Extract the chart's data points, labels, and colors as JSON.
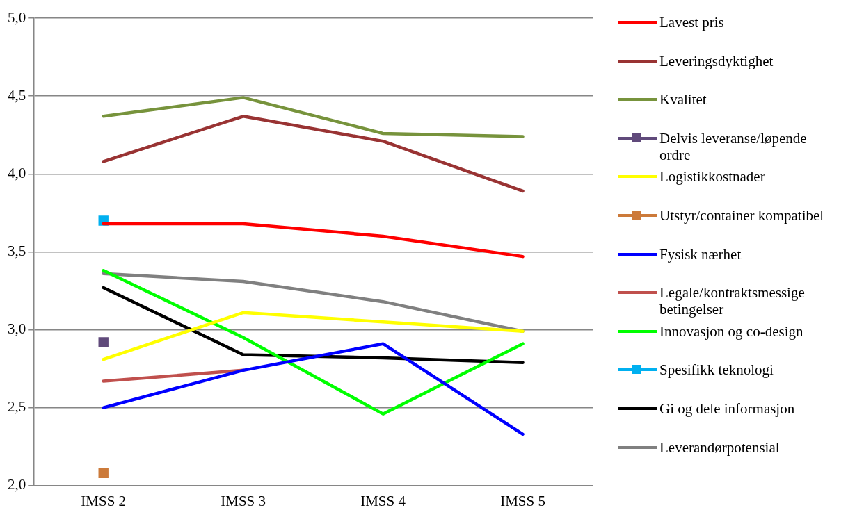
{
  "chart_data": {
    "type": "line",
    "categories": [
      "IMSS 2",
      "IMSS 3",
      "IMSS 4",
      "IMSS 5"
    ],
    "ylim": [
      2.0,
      5.0
    ],
    "yticks": [
      {
        "value": 2.0,
        "label": "2,0"
      },
      {
        "value": 2.5,
        "label": "2,5"
      },
      {
        "value": 3.0,
        "label": "3,0"
      },
      {
        "value": 3.5,
        "label": "3,5"
      },
      {
        "value": 4.0,
        "label": "4,0"
      },
      {
        "value": 4.5,
        "label": "4,5"
      },
      {
        "value": 5.0,
        "label": "5,0"
      }
    ],
    "grid": "y",
    "legend": "right",
    "marker": "none",
    "series": [
      {
        "name": "Lavest pris",
        "color": "#ff0000",
        "values": [
          3.68,
          3.68,
          3.6,
          3.47
        ]
      },
      {
        "name": "Leveringsdyktighet",
        "color": "#993333",
        "values": [
          4.08,
          4.37,
          4.21,
          3.89
        ]
      },
      {
        "name": "Kvalitet",
        "color": "#77933c",
        "values": [
          4.37,
          4.49,
          4.26,
          4.24
        ]
      },
      {
        "name": "Delvis leveranse/løpende ordre",
        "color": "#604a7b",
        "marker": "square",
        "values": [
          2.92,
          null,
          null,
          null
        ]
      },
      {
        "name": "Logistikkostnader",
        "color": "#ffff00",
        "values": [
          2.81,
          3.11,
          3.05,
          2.99
        ]
      },
      {
        "name": "Utstyr/container kompatibel",
        "color": "#cc7a3a",
        "marker": "square",
        "values": [
          2.08,
          null,
          null,
          null
        ]
      },
      {
        "name": "Fysisk nærhet",
        "color": "#0000ff",
        "values": [
          2.5,
          2.74,
          2.91,
          2.33
        ]
      },
      {
        "name": "Legale/kontraktsmessige betingelser",
        "color": "#c0504d",
        "values": [
          2.67,
          2.74,
          null,
          null
        ]
      },
      {
        "name": "Innovasjon og co-design",
        "color": "#00ff00",
        "values": [
          3.38,
          2.95,
          2.46,
          2.91
        ]
      },
      {
        "name": "Spesifikk teknologi",
        "color": "#00b0f0",
        "marker": "square",
        "values": [
          3.7,
          null,
          null,
          null
        ]
      },
      {
        "name": "Gi og dele informasjon",
        "color": "#000000",
        "values": [
          3.27,
          2.84,
          2.82,
          2.79
        ]
      },
      {
        "name": "Leverandørpotensial",
        "color": "#808080",
        "values": [
          3.36,
          3.31,
          3.18,
          2.99
        ]
      }
    ]
  }
}
